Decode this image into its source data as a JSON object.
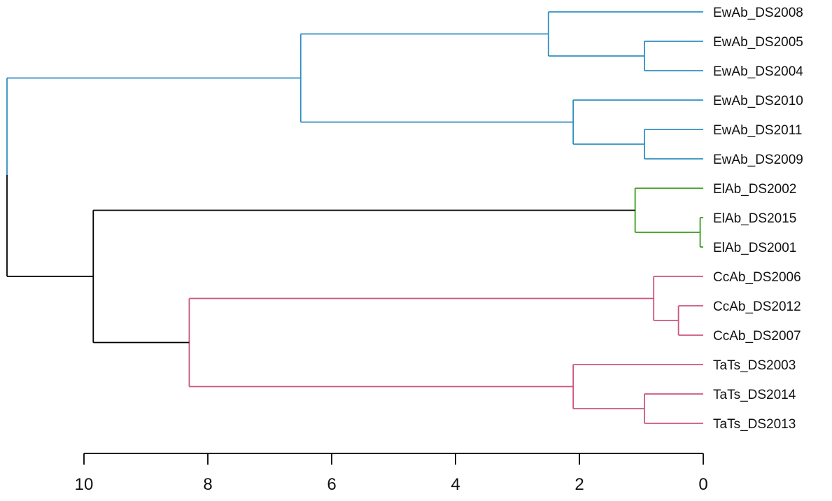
{
  "chart_data": {
    "type": "dendrogram",
    "orientation": "horizontal",
    "xaxis": {
      "min": 10,
      "max": 0,
      "ticks": [
        10,
        8,
        6,
        4,
        2,
        0
      ]
    },
    "colors": {
      "blue": "#2f8fc0",
      "green": "#3a9a1a",
      "pink": "#cc5580",
      "root": "#000000"
    },
    "leaves": [
      "EwAb_DS2008",
      "EwAb_DS2005",
      "EwAb_DS2004",
      "EwAb_DS2010",
      "EwAb_DS2011",
      "EwAb_DS2009",
      "ElAb_DS2002",
      "ElAb_DS2015",
      "ElAb_DS2001",
      "CcAb_DS2006",
      "CcAb_DS2012",
      "CcAb_DS2007",
      "TaTs_DS2003",
      "TaTs_DS2014",
      "TaTs_DS2013"
    ],
    "merges": [
      {
        "id": "m1",
        "height": 0.95,
        "children": [
          "EwAb_DS2005",
          "EwAb_DS2004"
        ],
        "color": "blue"
      },
      {
        "id": "m2",
        "height": 2.5,
        "children": [
          "EwAb_DS2008",
          "m1"
        ],
        "color": "blue"
      },
      {
        "id": "m3",
        "height": 0.95,
        "children": [
          "EwAb_DS2011",
          "EwAb_DS2009"
        ],
        "color": "blue"
      },
      {
        "id": "m4",
        "height": 2.1,
        "children": [
          "EwAb_DS2010",
          "m3"
        ],
        "color": "blue"
      },
      {
        "id": "m5",
        "height": 6.5,
        "children": [
          "m2",
          "m4"
        ],
        "color": "blue"
      },
      {
        "id": "m6",
        "height": 0.05,
        "children": [
          "ElAb_DS2015",
          "ElAb_DS2001"
        ],
        "color": "green"
      },
      {
        "id": "m7",
        "height": 1.1,
        "children": [
          "ElAb_DS2002",
          "m6"
        ],
        "color": "green"
      },
      {
        "id": "m8",
        "height": 0.4,
        "children": [
          "CcAb_DS2012",
          "CcAb_DS2007"
        ],
        "color": "pink"
      },
      {
        "id": "m9",
        "height": 0.8,
        "children": [
          "CcAb_DS2006",
          "m8"
        ],
        "color": "pink"
      },
      {
        "id": "m10",
        "height": 0.95,
        "children": [
          "TaTs_DS2014",
          "TaTs_DS2013"
        ],
        "color": "pink"
      },
      {
        "id": "m11",
        "height": 2.1,
        "children": [
          "TaTs_DS2003",
          "m10"
        ],
        "color": "pink"
      },
      {
        "id": "m12",
        "height": 8.3,
        "children": [
          "m9",
          "m11"
        ],
        "color": "pink"
      },
      {
        "id": "m13",
        "height": 9.85,
        "children": [
          "m7",
          "m12"
        ],
        "color": "root"
      },
      {
        "id": "m14",
        "height": 12.5,
        "children": [
          "m5",
          "m13"
        ],
        "color": "root"
      }
    ]
  }
}
